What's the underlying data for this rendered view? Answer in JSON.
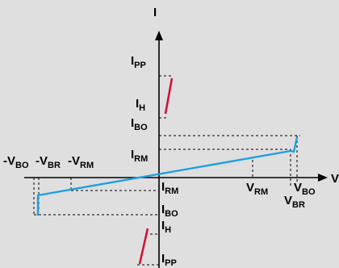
{
  "colors": {
    "background": "#dfdfdf",
    "axis": "#000000",
    "forward_curve": "#1ea0e0",
    "holding_curve": "#d0143c",
    "guide_lines": "#000000"
  },
  "axes": {
    "y_label": "I",
    "x_label": "V"
  },
  "current_labels": {
    "ipp_top": {
      "main": "I",
      "sub": "PP"
    },
    "ih_top": {
      "main": "I",
      "sub": "H"
    },
    "ibo_top": {
      "main": "I",
      "sub": "BO"
    },
    "irm_top": {
      "main": "I",
      "sub": "RM"
    },
    "irm_bottom": {
      "main": "I",
      "sub": "RM"
    },
    "ibo_bottom": {
      "main": "I",
      "sub": "BO"
    },
    "ih_bottom": {
      "main": "I",
      "sub": "H"
    },
    "ipp_bottom": {
      "main": "I",
      "sub": "PP"
    }
  },
  "voltage_labels": {
    "neg_vbo": {
      "main": "-V",
      "sub": "BO"
    },
    "neg_vbr": {
      "main": "-V",
      "sub": "BR"
    },
    "neg_vrm": {
      "main": "-V",
      "sub": "RM"
    },
    "vrm": {
      "main": "V",
      "sub": "RM"
    },
    "vbo": {
      "main": "V",
      "sub": "BO"
    },
    "vbr": {
      "main": "V",
      "sub": "BR"
    }
  }
}
